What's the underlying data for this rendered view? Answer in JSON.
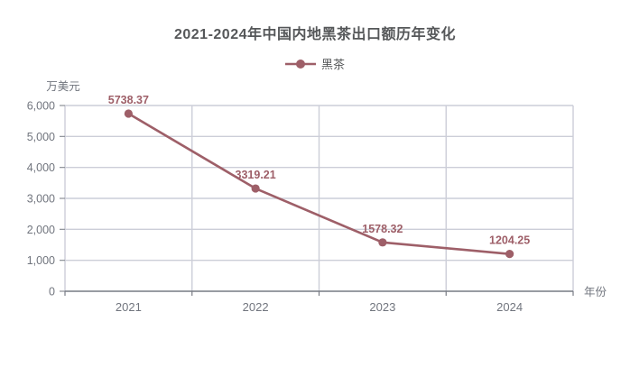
{
  "title": "2021-2024年中国内地黑茶出口额历年变化",
  "legend": {
    "items": [
      {
        "label": "黑茶"
      }
    ]
  },
  "colors": {
    "series": "#9e5f68",
    "title_text": "#555759",
    "axis_text": "#71757e",
    "grid_line": "#ccced8",
    "axis_line": "#777b84",
    "tick_mark": "#8b8e96",
    "background": "#ffffff"
  },
  "chart_data": {
    "type": "line",
    "title": "2021-2024年中国内地黑茶出口额历年变化",
    "categories": [
      "2021",
      "2022",
      "2023",
      "2024"
    ],
    "series": [
      {
        "name": "黑茶",
        "values": [
          5738.37,
          3319.21,
          1578.32,
          1204.25
        ],
        "labels": [
          "5738.37",
          "3319.21",
          "1578.32",
          "1204.25"
        ]
      }
    ],
    "xlabel": "年份",
    "ylabel": "万美元",
    "ylim": [
      0,
      6000
    ],
    "y_ticks": [
      0,
      1000,
      2000,
      3000,
      4000,
      5000,
      6000
    ],
    "y_tick_labels": [
      "0",
      "1,000",
      "2,000",
      "3,000",
      "4,000",
      "5,000",
      "6,000"
    ],
    "grid": true,
    "legend_position": "top",
    "marker": "circle"
  }
}
